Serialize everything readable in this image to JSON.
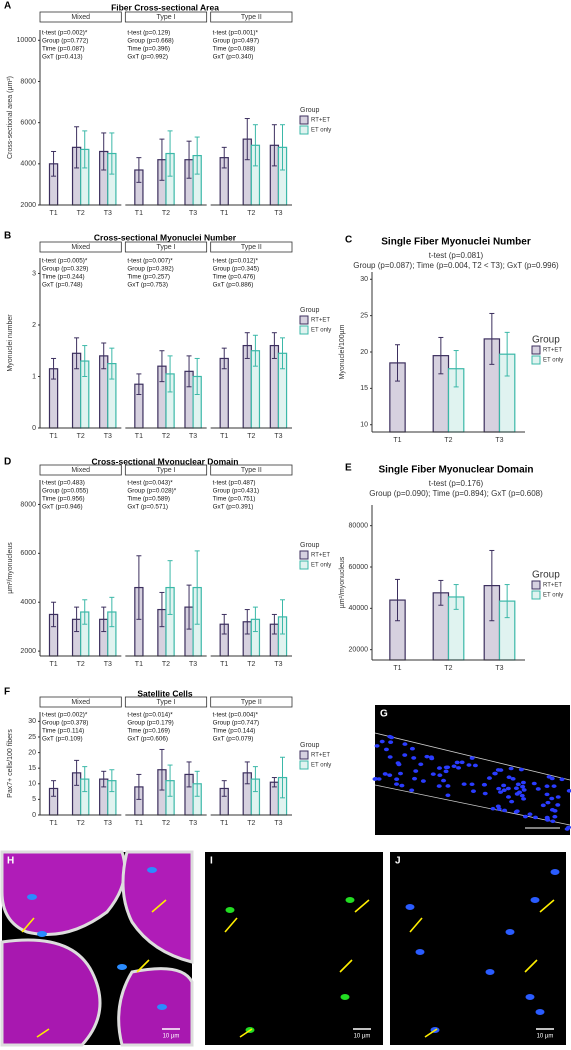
{
  "chart_data": [
    {
      "type": "facet-bar",
      "panel": "A",
      "title": "Fiber Cross-sectional Area",
      "y_label": "Cross-sectional area (µm²)",
      "legend_title": "Group",
      "categories": [
        "T1",
        "T2",
        "T3"
      ],
      "ylim": [
        2000,
        10500
      ],
      "yticks": [
        2000,
        4000,
        6000,
        8000,
        10000
      ],
      "facets": [
        {
          "name": "Mixed",
          "stats": [
            "t-test (p=0.002)*",
            "Group (p=0.772)",
            "Time (p=0.087)",
            "GxT (p=0.413)"
          ],
          "series": [
            {
              "name": "RT+ET",
              "color": "#3c2f5e",
              "fill": "#d6d1df",
              "values": [
                4000,
                4800,
                4600
              ],
              "errors": [
                600,
                1000,
                900
              ]
            },
            {
              "name": "ET only",
              "color": "#3bb8a8",
              "fill": "#e0f3f0",
              "values": [
                null,
                4700,
                4500
              ],
              "errors": [
                null,
                900,
                1000
              ]
            }
          ]
        },
        {
          "name": "Type I",
          "stats": [
            "t-test (p=0.129)",
            "Group (p=0.668)",
            "Time (p=0.396)",
            "GxT (p=0.992)"
          ],
          "series": [
            {
              "name": "RT+ET",
              "color": "#3c2f5e",
              "fill": "#d6d1df",
              "values": [
                3700,
                4200,
                4200
              ],
              "errors": [
                600,
                1000,
                900
              ]
            },
            {
              "name": "ET only",
              "color": "#3bb8a8",
              "fill": "#e0f3f0",
              "values": [
                null,
                4500,
                4400
              ],
              "errors": [
                null,
                1100,
                900
              ]
            }
          ]
        },
        {
          "name": "Type II",
          "stats": [
            "t-test (p=0.001)*",
            "Group (p=0.497)",
            "Time (p=0.088)",
            "GxT (p=0.340)"
          ],
          "series": [
            {
              "name": "RT+ET",
              "color": "#3c2f5e",
              "fill": "#d6d1df",
              "values": [
                4300,
                5200,
                4900
              ],
              "errors": [
                500,
                1000,
                1000
              ]
            },
            {
              "name": "ET only",
              "color": "#3bb8a8",
              "fill": "#e0f3f0",
              "values": [
                null,
                4900,
                4800
              ],
              "errors": [
                null,
                1000,
                1100
              ]
            }
          ]
        }
      ]
    },
    {
      "type": "facet-bar",
      "panel": "B",
      "title": "Cross-sectional Myonuclei Number",
      "y_label": "Myonuclei number",
      "legend_title": "Group",
      "categories": [
        "T1",
        "T2",
        "T3"
      ],
      "ylim": [
        0,
        3.3
      ],
      "yticks": [
        0,
        1,
        2,
        3
      ],
      "facets": [
        {
          "name": "Mixed",
          "stats": [
            "t-test (p=0.005)*",
            "Group (p=0.329)",
            "Time (p=0.244)",
            "GxT (p=0.748)"
          ],
          "series": [
            {
              "name": "RT+ET",
              "color": "#3c2f5e",
              "fill": "#d6d1df",
              "values": [
                1.15,
                1.45,
                1.4
              ],
              "errors": [
                0.2,
                0.3,
                0.25
              ]
            },
            {
              "name": "ET only",
              "color": "#3bb8a8",
              "fill": "#e0f3f0",
              "values": [
                null,
                1.3,
                1.25
              ],
              "errors": [
                null,
                0.3,
                0.3
              ]
            }
          ]
        },
        {
          "name": "Type I",
          "stats": [
            "t-test (p=0.007)*",
            "Group (p=0.392)",
            "Time (p=0.257)",
            "GxT (p=0.753)"
          ],
          "series": [
            {
              "name": "RT+ET",
              "color": "#3c2f5e",
              "fill": "#d6d1df",
              "values": [
                0.85,
                1.2,
                1.1
              ],
              "errors": [
                0.2,
                0.3,
                0.3
              ]
            },
            {
              "name": "ET only",
              "color": "#3bb8a8",
              "fill": "#e0f3f0",
              "values": [
                null,
                1.05,
                1.0
              ],
              "errors": [
                null,
                0.35,
                0.35
              ]
            }
          ]
        },
        {
          "name": "Type II",
          "stats": [
            "t-test (p=0.012)*",
            "Group (p=0.345)",
            "Time (p=0.476)",
            "GxT (p=0.886)"
          ],
          "series": [
            {
              "name": "RT+ET",
              "color": "#3c2f5e",
              "fill": "#d6d1df",
              "values": [
                1.35,
                1.6,
                1.6
              ],
              "errors": [
                0.2,
                0.25,
                0.25
              ]
            },
            {
              "name": "ET only",
              "color": "#3bb8a8",
              "fill": "#e0f3f0",
              "values": [
                null,
                1.5,
                1.45
              ],
              "errors": [
                null,
                0.3,
                0.3
              ]
            }
          ]
        }
      ]
    },
    {
      "type": "bar",
      "panel": "C",
      "title": "Single Fiber Myonuclei Number",
      "subtitle": [
        "t-test (p=0.081)",
        "Group (p=0.087); Time (p=0.004, T2 < T3); GxT (p=0.996)"
      ],
      "y_label": "Myonuclei/100µm",
      "legend_title": "Group",
      "categories": [
        "T1",
        "T2",
        "T3"
      ],
      "ylim": [
        9,
        31
      ],
      "yticks": [
        10,
        15,
        20,
        25,
        30
      ],
      "series": [
        {
          "name": "RT+ET",
          "color": "#3c2f5e",
          "fill": "#d6d1df",
          "values": [
            18.5,
            19.5,
            21.8
          ],
          "errors": [
            2.5,
            2.5,
            3.5
          ]
        },
        {
          "name": "ET only",
          "color": "#3bb8a8",
          "fill": "#e0f3f0",
          "values": [
            null,
            17.7,
            19.7
          ],
          "errors": [
            null,
            2.5,
            3
          ]
        }
      ]
    },
    {
      "type": "facet-bar",
      "panel": "D",
      "title": "Cross-sectional Myonuclear Domain",
      "y_label": "µm²/myonucleus",
      "legend_title": "Group",
      "categories": [
        "T1",
        "T2",
        "T3"
      ],
      "ylim": [
        1800,
        9000
      ],
      "yticks": [
        2000,
        4000,
        6000,
        8000
      ],
      "facets": [
        {
          "name": "Mixed",
          "stats": [
            "t-test (p=0.483)",
            "Group (p=0.055)",
            "Time (p=0.956)",
            "GxT (p=0.946)"
          ],
          "series": [
            {
              "name": "RT+ET",
              "color": "#3c2f5e",
              "fill": "#d6d1df",
              "values": [
                3500,
                3300,
                3300
              ],
              "errors": [
                500,
                500,
                500
              ]
            },
            {
              "name": "ET only",
              "color": "#3bb8a8",
              "fill": "#e0f3f0",
              "values": [
                null,
                3600,
                3600
              ],
              "errors": [
                null,
                500,
                600
              ]
            }
          ]
        },
        {
          "name": "Type I",
          "stats": [
            "t-test (p=0.043)*",
            "Group (p=0.028)*",
            "Time (p=0.589)",
            "GxT (p=0.571)"
          ],
          "series": [
            {
              "name": "RT+ET",
              "color": "#3c2f5e",
              "fill": "#d6d1df",
              "values": [
                4600,
                3700,
                3800
              ],
              "errors": [
                1300,
                700,
                900
              ]
            },
            {
              "name": "ET only",
              "color": "#3bb8a8",
              "fill": "#e0f3f0",
              "values": [
                null,
                4600,
                4600
              ],
              "errors": [
                null,
                1100,
                1500
              ]
            }
          ]
        },
        {
          "name": "Type II",
          "stats": [
            "t-test (p=0.487)",
            "Group (p=0.431)",
            "Time (p=0.751)",
            "GxT (p=0.391)"
          ],
          "series": [
            {
              "name": "RT+ET",
              "color": "#3c2f5e",
              "fill": "#d6d1df",
              "values": [
                3100,
                3200,
                3100
              ],
              "errors": [
                400,
                500,
                400
              ]
            },
            {
              "name": "ET only",
              "color": "#3bb8a8",
              "fill": "#e0f3f0",
              "values": [
                null,
                3300,
                3400
              ],
              "errors": [
                null,
                500,
                700
              ]
            }
          ]
        }
      ]
    },
    {
      "type": "bar",
      "panel": "E",
      "title": "Single Fiber Myonuclear Domain",
      "subtitle": [
        "t-test (p=0.176)",
        "Group (p=0.090); Time (p=0.894); GxT (p=0.608)"
      ],
      "y_label": "µm²/myonucleus",
      "legend_title": "Group",
      "categories": [
        "T1",
        "T2",
        "T3"
      ],
      "ylim": [
        15000,
        90000
      ],
      "yticks": [
        20000,
        40000,
        60000,
        80000
      ],
      "series": [
        {
          "name": "RT+ET",
          "color": "#3c2f5e",
          "fill": "#d6d1df",
          "values": [
            44000,
            47500,
            51000
          ],
          "errors": [
            10000,
            6000,
            17000
          ]
        },
        {
          "name": "ET only",
          "color": "#3bb8a8",
          "fill": "#e0f3f0",
          "values": [
            null,
            45500,
            43500
          ],
          "errors": [
            null,
            6000,
            8000
          ]
        }
      ]
    },
    {
      "type": "facet-bar",
      "panel": "F",
      "title": "Satellite Cells",
      "y_label": "Pax7+ cells/100 fibers",
      "legend_title": "Group",
      "categories": [
        "T1",
        "T2",
        "T3"
      ],
      "ylim": [
        0,
        33
      ],
      "yticks": [
        0,
        5,
        10,
        15,
        20,
        25,
        30
      ],
      "facets": [
        {
          "name": "Mixed",
          "stats": [
            "t-test (p=0.002)*",
            "Group (p=0.378)",
            "Time (p=0.114)",
            "GxT (p=0.109)"
          ],
          "series": [
            {
              "name": "RT+ET",
              "color": "#3c2f5e",
              "fill": "#d6d1df",
              "values": [
                8.5,
                13.5,
                11.5
              ],
              "errors": [
                2.5,
                4,
                2.5
              ]
            },
            {
              "name": "ET only",
              "color": "#3bb8a8",
              "fill": "#e0f3f0",
              "values": [
                null,
                11.5,
                11
              ],
              "errors": [
                null,
                4,
                3.5
              ]
            }
          ]
        },
        {
          "name": "Type I",
          "stats": [
            "t-test (p=0.014)*",
            "Group (p=0.179)",
            "Time (p=0.169)",
            "GxT (p=0.606)"
          ],
          "series": [
            {
              "name": "RT+ET",
              "color": "#3c2f5e",
              "fill": "#d6d1df",
              "values": [
                9,
                14.5,
                13
              ],
              "errors": [
                4,
                6.5,
                4
              ]
            },
            {
              "name": "ET only",
              "color": "#3bb8a8",
              "fill": "#e0f3f0",
              "values": [
                null,
                11,
                10
              ],
              "errors": [
                null,
                5,
                4
              ]
            }
          ]
        },
        {
          "name": "Type II",
          "stats": [
            "t-test (p=0.004)*",
            "Group (p=0.747)",
            "Time (p=0.144)",
            "GxT (p=0.079)"
          ],
          "series": [
            {
              "name": "RT+ET",
              "color": "#3c2f5e",
              "fill": "#d6d1df",
              "values": [
                8.5,
                13.5,
                10.5
              ],
              "errors": [
                2.5,
                3.5,
                1.5
              ]
            },
            {
              "name": "ET only",
              "color": "#3bb8a8",
              "fill": "#e0f3f0",
              "values": [
                null,
                11.5,
                12
              ],
              "errors": [
                null,
                4,
                6.5
              ]
            }
          ]
        }
      ]
    }
  ],
  "images": [
    {
      "panel": "G"
    },
    {
      "panel": "H",
      "scale_label": "10 µm"
    },
    {
      "panel": "I",
      "scale_label": "10 µm"
    },
    {
      "panel": "J",
      "scale_label": "10 µm"
    }
  ]
}
